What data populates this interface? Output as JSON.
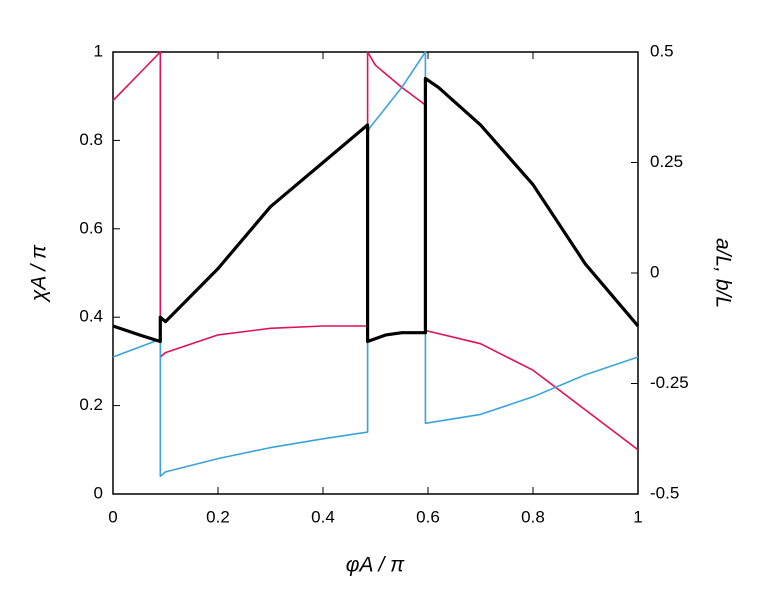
{
  "chart_data": {
    "type": "line",
    "xlabel": "φA / π",
    "ylabel": "χA / π",
    "y2label": "a/L, b/L",
    "xlim": [
      0,
      1
    ],
    "xticks": [
      0,
      0.2,
      0.4,
      0.6,
      0.8,
      1
    ],
    "ylim": [
      0,
      1
    ],
    "yticks": [
      0,
      0.2,
      0.4,
      0.6,
      0.8,
      1
    ],
    "y2lim": [
      -0.5,
      0.5
    ],
    "y2ticks": [
      -0.5,
      -0.25,
      0,
      0.25,
      0.5
    ],
    "series": [
      {
        "color": "#000000",
        "width": 3.2,
        "x": [
          0,
          0.05,
          0.09,
          0.09,
          0.1,
          0.2,
          0.3,
          0.4,
          0.485,
          0.485,
          0.52,
          0.55,
          0.595,
          0.595,
          0.62,
          0.7,
          0.8,
          0.9,
          1
        ],
        "values": [
          0.38,
          0.36,
          0.345,
          0.4,
          0.39,
          0.51,
          0.65,
          0.75,
          0.835,
          0.345,
          0.36,
          0.365,
          0.365,
          0.94,
          0.92,
          0.835,
          0.7,
          0.52,
          0.38
        ]
      },
      {
        "color": "#e0105c",
        "width": 1.6,
        "axis": "y2",
        "x": [
          0,
          0.09,
          0.09,
          0.1,
          0.2,
          0.3,
          0.4,
          0.485,
          0.485,
          0.5,
          0.55,
          0.595,
          0.595,
          0.7,
          0.8,
          0.9,
          1
        ],
        "values": [
          0.39,
          0.5,
          -0.19,
          -0.18,
          -0.14,
          -0.125,
          -0.12,
          -0.12,
          0.5,
          0.47,
          0.42,
          0.38,
          -0.13,
          -0.16,
          -0.22,
          -0.31,
          -0.4
        ]
      },
      {
        "color": "#3ba3dc",
        "width": 1.6,
        "axis": "y2",
        "x": [
          0,
          0.09,
          0.09,
          0.1,
          0.2,
          0.3,
          0.4,
          0.485,
          0.485,
          0.49,
          0.55,
          0.595,
          0.595,
          0.7,
          0.8,
          0.9,
          1
        ],
        "values": [
          -0.19,
          -0.15,
          -0.46,
          -0.45,
          -0.42,
          -0.395,
          -0.375,
          -0.36,
          0.32,
          0.33,
          0.42,
          0.5,
          -0.34,
          -0.32,
          -0.28,
          -0.23,
          -0.19
        ]
      }
    ]
  }
}
